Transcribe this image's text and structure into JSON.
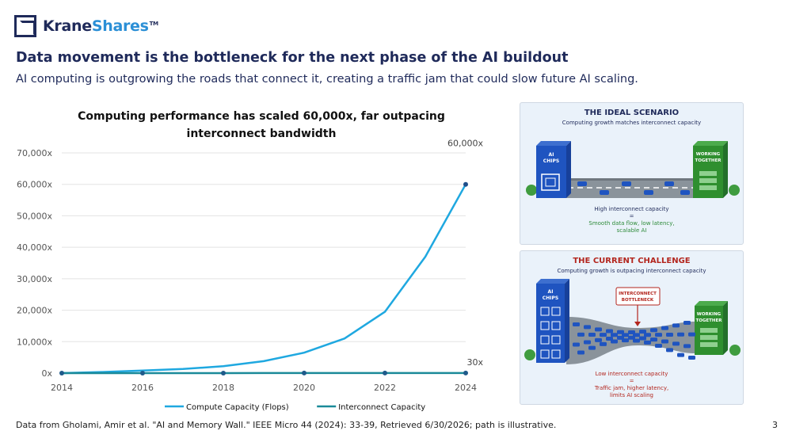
{
  "brand": {
    "name_part1": "Krane",
    "name_part2": "Shares",
    "tm": "TM"
  },
  "headline": "Data movement is the bottleneck for the next phase of the AI buildout",
  "subhead": "AI computing is outgrowing the roads that connect it, creating a traffic jam that could slow future AI scaling.",
  "chart_title_line1": "Computing performance has scaled 60,000x, far outpacing",
  "chart_title_line2": "interconnect bandwidth",
  "chart_data": {
    "type": "line",
    "title": "Computing performance has scaled 60,000x, far outpacing interconnect bandwidth",
    "x": [
      2014,
      2015,
      2016,
      2017,
      2018,
      2019,
      2020,
      2021,
      2022,
      2023,
      2024
    ],
    "xticks": [
      "2014",
      "2016",
      "2018",
      "2020",
      "2022",
      "2024"
    ],
    "yticks": [
      "0x",
      "10,000x",
      "20,000x",
      "30,000x",
      "40,000x",
      "50,000x",
      "60,000x",
      "70,000x"
    ],
    "ylim": [
      0,
      70000
    ],
    "grid": true,
    "legend": "bottom",
    "series": [
      {
        "name": "Compute Capacity (Flops)",
        "color": "#1fa8e0",
        "values": [
          1,
          350,
          800,
          1300,
          2200,
          3800,
          6500,
          11000,
          19500,
          37000,
          60000
        ],
        "markers": []
      },
      {
        "name": "Interconnect Capacity",
        "color": "#1b8a99",
        "values": [
          1,
          4,
          7,
          9,
          12,
          15,
          18,
          21,
          24,
          27,
          30
        ],
        "markers": [
          0,
          2,
          4,
          6,
          8,
          10
        ]
      }
    ],
    "annotations": [
      {
        "text": "60,000x",
        "x": 2024,
        "y": 60000
      },
      {
        "text": "30x",
        "x": 2024,
        "y": 30
      }
    ]
  },
  "ideal": {
    "title": "THE IDEAL SCENARIO",
    "subtitle": "Computing growth matches interconnect capacity",
    "chips_line1": "AI",
    "chips_line2": "CHIPS",
    "working_line1": "WORKING",
    "working_line2": "TOGETHER",
    "cap_line1": "High interconnect capacity",
    "cap_line2": "=",
    "cap_line3": "Smooth data flow, low latency,",
    "cap_line4": "scalable AI",
    "title_color": "#1f2a5a",
    "cap_color": "#2e8b3a"
  },
  "challenge": {
    "title": "THE CURRENT CHALLENGE",
    "subtitle": "Computing growth is outpacing interconnect capacity",
    "chips_line1": "AI",
    "chips_line2": "CHIPS",
    "bottleneck_line1": "INTERCONNECT",
    "bottleneck_line2": "BOTTLENECK",
    "working_line1": "WORKING",
    "working_line2": "TOGETHER",
    "cap_line1": "Low interconnect capacity",
    "cap_line2": "=",
    "cap_line3": "Traffic jam, higher latency,",
    "cap_line4": "limits AI scaling",
    "title_color": "#b3261e",
    "cap_color": "#b3261e"
  },
  "footer": "Data from Gholami, Amir et al. \"AI and Memory Wall.\" IEEE Micro 44 (2024): 33-39, Retrieved 6/30/2026; path is illustrative.",
  "page_number": "3"
}
